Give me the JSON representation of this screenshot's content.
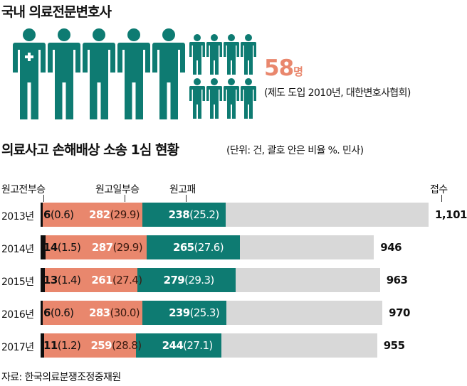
{
  "header": {
    "title": "국내 의료전문변호사",
    "count_value": "58",
    "count_unit": "명",
    "note": "(제도 도입 2010년, 대한변호사협회)"
  },
  "colors": {
    "accent": "#e9876d",
    "teal": "#0e7b72",
    "black": "#0e0e0e",
    "gray": "#d8d8d8"
  },
  "icons": {
    "large": "person-icon",
    "small": "person-icon-small",
    "first_badge": "medical-cross-icon"
  },
  "chart_data": {
    "type": "bar",
    "orientation": "horizontal",
    "stacked": true,
    "title": "의료사고 손해배상 소송 1심 현황",
    "subtitle": "(단위: 건, 괄호 안은 비율 %. 민사)",
    "categories": [
      "2013년",
      "2014년",
      "2015년",
      "2016년",
      "2017년"
    ],
    "series": [
      {
        "name": "원고전부승",
        "values": [
          6,
          14,
          13,
          6,
          11
        ],
        "labels": [
          "(0.6)",
          "(1.5)",
          "(1.4)",
          "(0.6)",
          "(1.2)"
        ]
      },
      {
        "name": "원고일부승",
        "values": [
          282,
          287,
          261,
          283,
          259
        ],
        "labels": [
          "(29.9)",
          "(29.9)",
          "(27.4)",
          "(30.0)",
          "(28.8)"
        ]
      },
      {
        "name": "원고패",
        "values": [
          238,
          265,
          279,
          239,
          244
        ],
        "labels": [
          "(25.2)",
          "(27.6)",
          "(29.3)",
          "(25.3)",
          "(27.1)"
        ]
      }
    ],
    "totals": {
      "name": "접수",
      "values": [
        "1,101",
        "946",
        "963",
        "970",
        "955"
      ],
      "numeric": [
        1101,
        946,
        963,
        970,
        955
      ]
    },
    "xlim": [
      0,
      1101
    ]
  },
  "source": "자료: 한국의료분쟁조정중재원"
}
